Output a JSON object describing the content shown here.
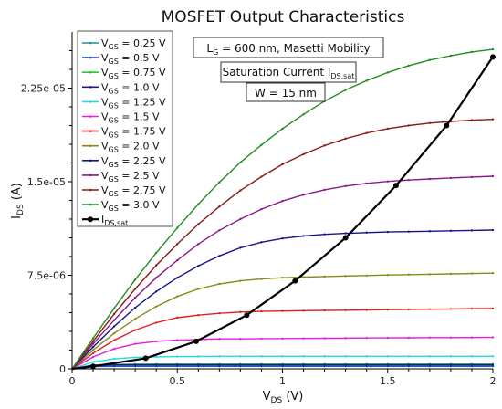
{
  "chart_data": {
    "type": "line",
    "title": "MOSFET Output Characteristics",
    "xlabel": {
      "main": "V",
      "sub": "DS",
      "unit": " (V)"
    },
    "ylabel": {
      "main": "I",
      "sub": "DS",
      "unit": " (A)"
    },
    "xlim": [
      0,
      2
    ],
    "ylim": [
      0,
      2.7e-05
    ],
    "x_ticks": [
      0,
      0.5,
      1,
      1.5,
      2
    ],
    "x_tick_labels": [
      "0",
      "0.5",
      "1",
      "1.5",
      "2"
    ],
    "y_ticks": [
      0,
      7.5e-06,
      1.5e-05,
      2.25e-05
    ],
    "y_tick_labels": [
      "0",
      "7.5e-06",
      "1.5e-05",
      "2.25e-05"
    ],
    "grid": false,
    "legend_position": "top-left",
    "annotations": [
      {
        "main": "L",
        "sub": "G",
        "rest": " = 600 nm, Masetti Mobility"
      },
      {
        "main": "Saturation Current I",
        "sub": "DS,sat",
        "rest": ""
      },
      {
        "main": "W = 15 nm",
        "sub": "",
        "rest": ""
      }
    ],
    "x": [
      0,
      0.1,
      0.2,
      0.3,
      0.4,
      0.5,
      0.6,
      0.7,
      0.8,
      0.9,
      1.0,
      1.1,
      1.2,
      1.3,
      1.4,
      1.5,
      1.6,
      1.7,
      1.8,
      1.9,
      2.0
    ],
    "series": [
      {
        "label_main": "V",
        "label_sub": "GS",
        "label_rest": " = 0.25 V",
        "color": "#1f8ea0",
        "values": [
          0,
          1.8e-07,
          2e-07,
          2e-07,
          2e-07,
          2e-07,
          2e-07,
          2e-07,
          2e-07,
          2e-07,
          2e-07,
          2e-07,
          2e-07,
          2e-07,
          2e-07,
          2e-07,
          2e-07,
          2e-07,
          2e-07,
          2e-07,
          2e-07
        ]
      },
      {
        "label_main": "V",
        "label_sub": "GS",
        "label_rest": " = 0.5 V",
        "color": "#1f3fbf",
        "values": [
          0,
          2e-07,
          2.2e-07,
          2.3e-07,
          2.3e-07,
          2.3e-07,
          2.3e-07,
          2.3e-07,
          2.3e-07,
          2.3e-07,
          2.3e-07,
          2.3e-07,
          2.3e-07,
          2.3e-07,
          2.3e-07,
          2.3e-07,
          2.3e-07,
          2.3e-07,
          2.3e-07,
          2.3e-07,
          2.3e-07
        ]
      },
      {
        "label_main": "V",
        "label_sub": "GS",
        "label_rest": " = 0.75 V",
        "color": "#22cc22",
        "values": [
          0,
          2.5e-07,
          3.5e-07,
          3.7e-07,
          3.8e-07,
          3.8e-07,
          3.8e-07,
          3.8e-07,
          3.8e-07,
          3.8e-07,
          3.8e-07,
          3.8e-07,
          3.8e-07,
          3.8e-07,
          3.8e-07,
          3.8e-07,
          3.8e-07,
          3.8e-07,
          3.8e-07,
          3.8e-07,
          3.8e-07
        ]
      },
      {
        "label_main": "V",
        "label_sub": "GS",
        "label_rest": " = 1.0 V",
        "color": "#1a1a8a",
        "values": [
          0,
          3e-07,
          3.2e-07,
          3.3e-07,
          3.3e-07,
          3.3e-07,
          3.3e-07,
          3.3e-07,
          3.3e-07,
          3.3e-07,
          3.3e-07,
          3.3e-07,
          3.3e-07,
          3.3e-07,
          3.3e-07,
          3.3e-07,
          3.3e-07,
          3.3e-07,
          3.3e-07,
          3.3e-07,
          3.3e-07
        ]
      },
      {
        "label_main": "V",
        "label_sub": "GS",
        "label_rest": " = 1.25 V",
        "color": "#22dddd",
        "values": [
          0,
          5.5e-07,
          8e-07,
          9.2e-07,
          9.6e-07,
          9.8e-07,
          9.9e-07,
          1e-06,
          1e-06,
          1e-06,
          1e-06,
          1e-06,
          1e-06,
          1e-06,
          1e-06,
          1e-06,
          1e-06,
          1e-06,
          1e-06,
          1e-06,
          1e-06
        ]
      },
      {
        "label_main": "V",
        "label_sub": "GS",
        "label_rest": " = 1.5 V",
        "color": "#e020e0",
        "values": [
          0,
          9.5e-07,
          1.6e-06,
          2e-06,
          2.2e-06,
          2.3e-06,
          2.35e-06,
          2.4e-06,
          2.4e-06,
          2.42e-06,
          2.43e-06,
          2.44e-06,
          2.45e-06,
          2.46e-06,
          2.47e-06,
          2.48e-06,
          2.49e-06,
          2.5e-06,
          2.5e-06,
          2.51e-06,
          2.52e-06
        ]
      },
      {
        "label_main": "V",
        "label_sub": "GS",
        "label_rest": " = 1.75 V",
        "color": "#e02020",
        "values": [
          0,
          1.25e-06,
          2.3e-06,
          3.1e-06,
          3.7e-06,
          4.1e-06,
          4.3e-06,
          4.45e-06,
          4.55e-06,
          4.6e-06,
          4.63e-06,
          4.66e-06,
          4.68e-06,
          4.7e-06,
          4.72e-06,
          4.74e-06,
          4.76e-06,
          4.78e-06,
          4.8e-06,
          4.82e-06,
          4.84e-06
        ]
      },
      {
        "label_main": "V",
        "label_sub": "GS",
        "label_rest": " = 2.0 V",
        "color": "#8a8a1a",
        "values": [
          0,
          1.5e-06,
          2.85e-06,
          4e-06,
          5e-06,
          5.8e-06,
          6.4e-06,
          6.8e-06,
          7.05e-06,
          7.2e-06,
          7.3e-06,
          7.35e-06,
          7.4e-06,
          7.44e-06,
          7.48e-06,
          7.52e-06,
          7.55e-06,
          7.58e-06,
          7.61e-06,
          7.64e-06,
          7.67e-06
        ]
      },
      {
        "label_main": "V",
        "label_sub": "GS",
        "label_rest": " = 2.25 V",
        "color": "#14148c",
        "values": [
          0,
          1.75e-06,
          3.4e-06,
          4.9e-06,
          6.2e-06,
          7.3e-06,
          8.25e-06,
          9.05e-06,
          9.7e-06,
          1.015e-05,
          1.045e-05,
          1.065e-05,
          1.078e-05,
          1.086e-05,
          1.092e-05,
          1.097e-05,
          1.1e-05,
          1.103e-05,
          1.106e-05,
          1.109e-05,
          1.112e-05
        ]
      },
      {
        "label_main": "V",
        "label_sub": "GS",
        "label_rest": " = 2.5 V",
        "color": "#8a1a8a",
        "values": [
          0,
          2e-06,
          3.9e-06,
          5.7e-06,
          7.3e-06,
          8.7e-06,
          1e-05,
          1.11e-05,
          1.2e-05,
          1.28e-05,
          1.345e-05,
          1.395e-05,
          1.435e-05,
          1.465e-05,
          1.487e-05,
          1.502e-05,
          1.513e-05,
          1.522e-05,
          1.53e-05,
          1.537e-05,
          1.544e-05
        ]
      },
      {
        "label_main": "V",
        "label_sub": "GS",
        "label_rest": " = 2.75 V",
        "color": "#8b1a1a",
        "values": [
          0,
          2.2e-06,
          4.4e-06,
          6.4e-06,
          8.3e-06,
          1e-05,
          1.16e-05,
          1.3e-05,
          1.43e-05,
          1.54e-05,
          1.64e-05,
          1.72e-05,
          1.79e-05,
          1.845e-05,
          1.89e-05,
          1.925e-05,
          1.95e-05,
          1.97e-05,
          1.983e-05,
          1.993e-05,
          2e-05
        ]
      },
      {
        "label_main": "V",
        "label_sub": "GS",
        "label_rest": " = 3.0 V",
        "color": "#1f8f1f",
        "values": [
          0,
          2.45e-06,
          4.85e-06,
          7.15e-06,
          9.3e-06,
          1.13e-05,
          1.32e-05,
          1.495e-05,
          1.655e-05,
          1.795e-05,
          1.925e-05,
          2.04e-05,
          2.145e-05,
          2.235e-05,
          2.31e-05,
          2.375e-05,
          2.43e-05,
          2.475e-05,
          2.51e-05,
          2.54e-05,
          2.56e-05
        ]
      }
    ],
    "saturation_curve": {
      "label_main": "I",
      "label_sub": "DS,sat",
      "label_rest": "",
      "color": "#000000",
      "points": [
        {
          "x": 0.1,
          "y": 2e-07
        },
        {
          "x": 0.35,
          "y": 8.5e-07
        },
        {
          "x": 0.59,
          "y": 2.2e-06
        },
        {
          "x": 0.83,
          "y": 4.3e-06
        },
        {
          "x": 1.06,
          "y": 7.05e-06
        },
        {
          "x": 1.3,
          "y": 1.05e-05
        },
        {
          "x": 1.54,
          "y": 1.47e-05
        },
        {
          "x": 1.78,
          "y": 1.95e-05
        },
        {
          "x": 2.0,
          "y": 2.5e-05
        }
      ]
    }
  }
}
